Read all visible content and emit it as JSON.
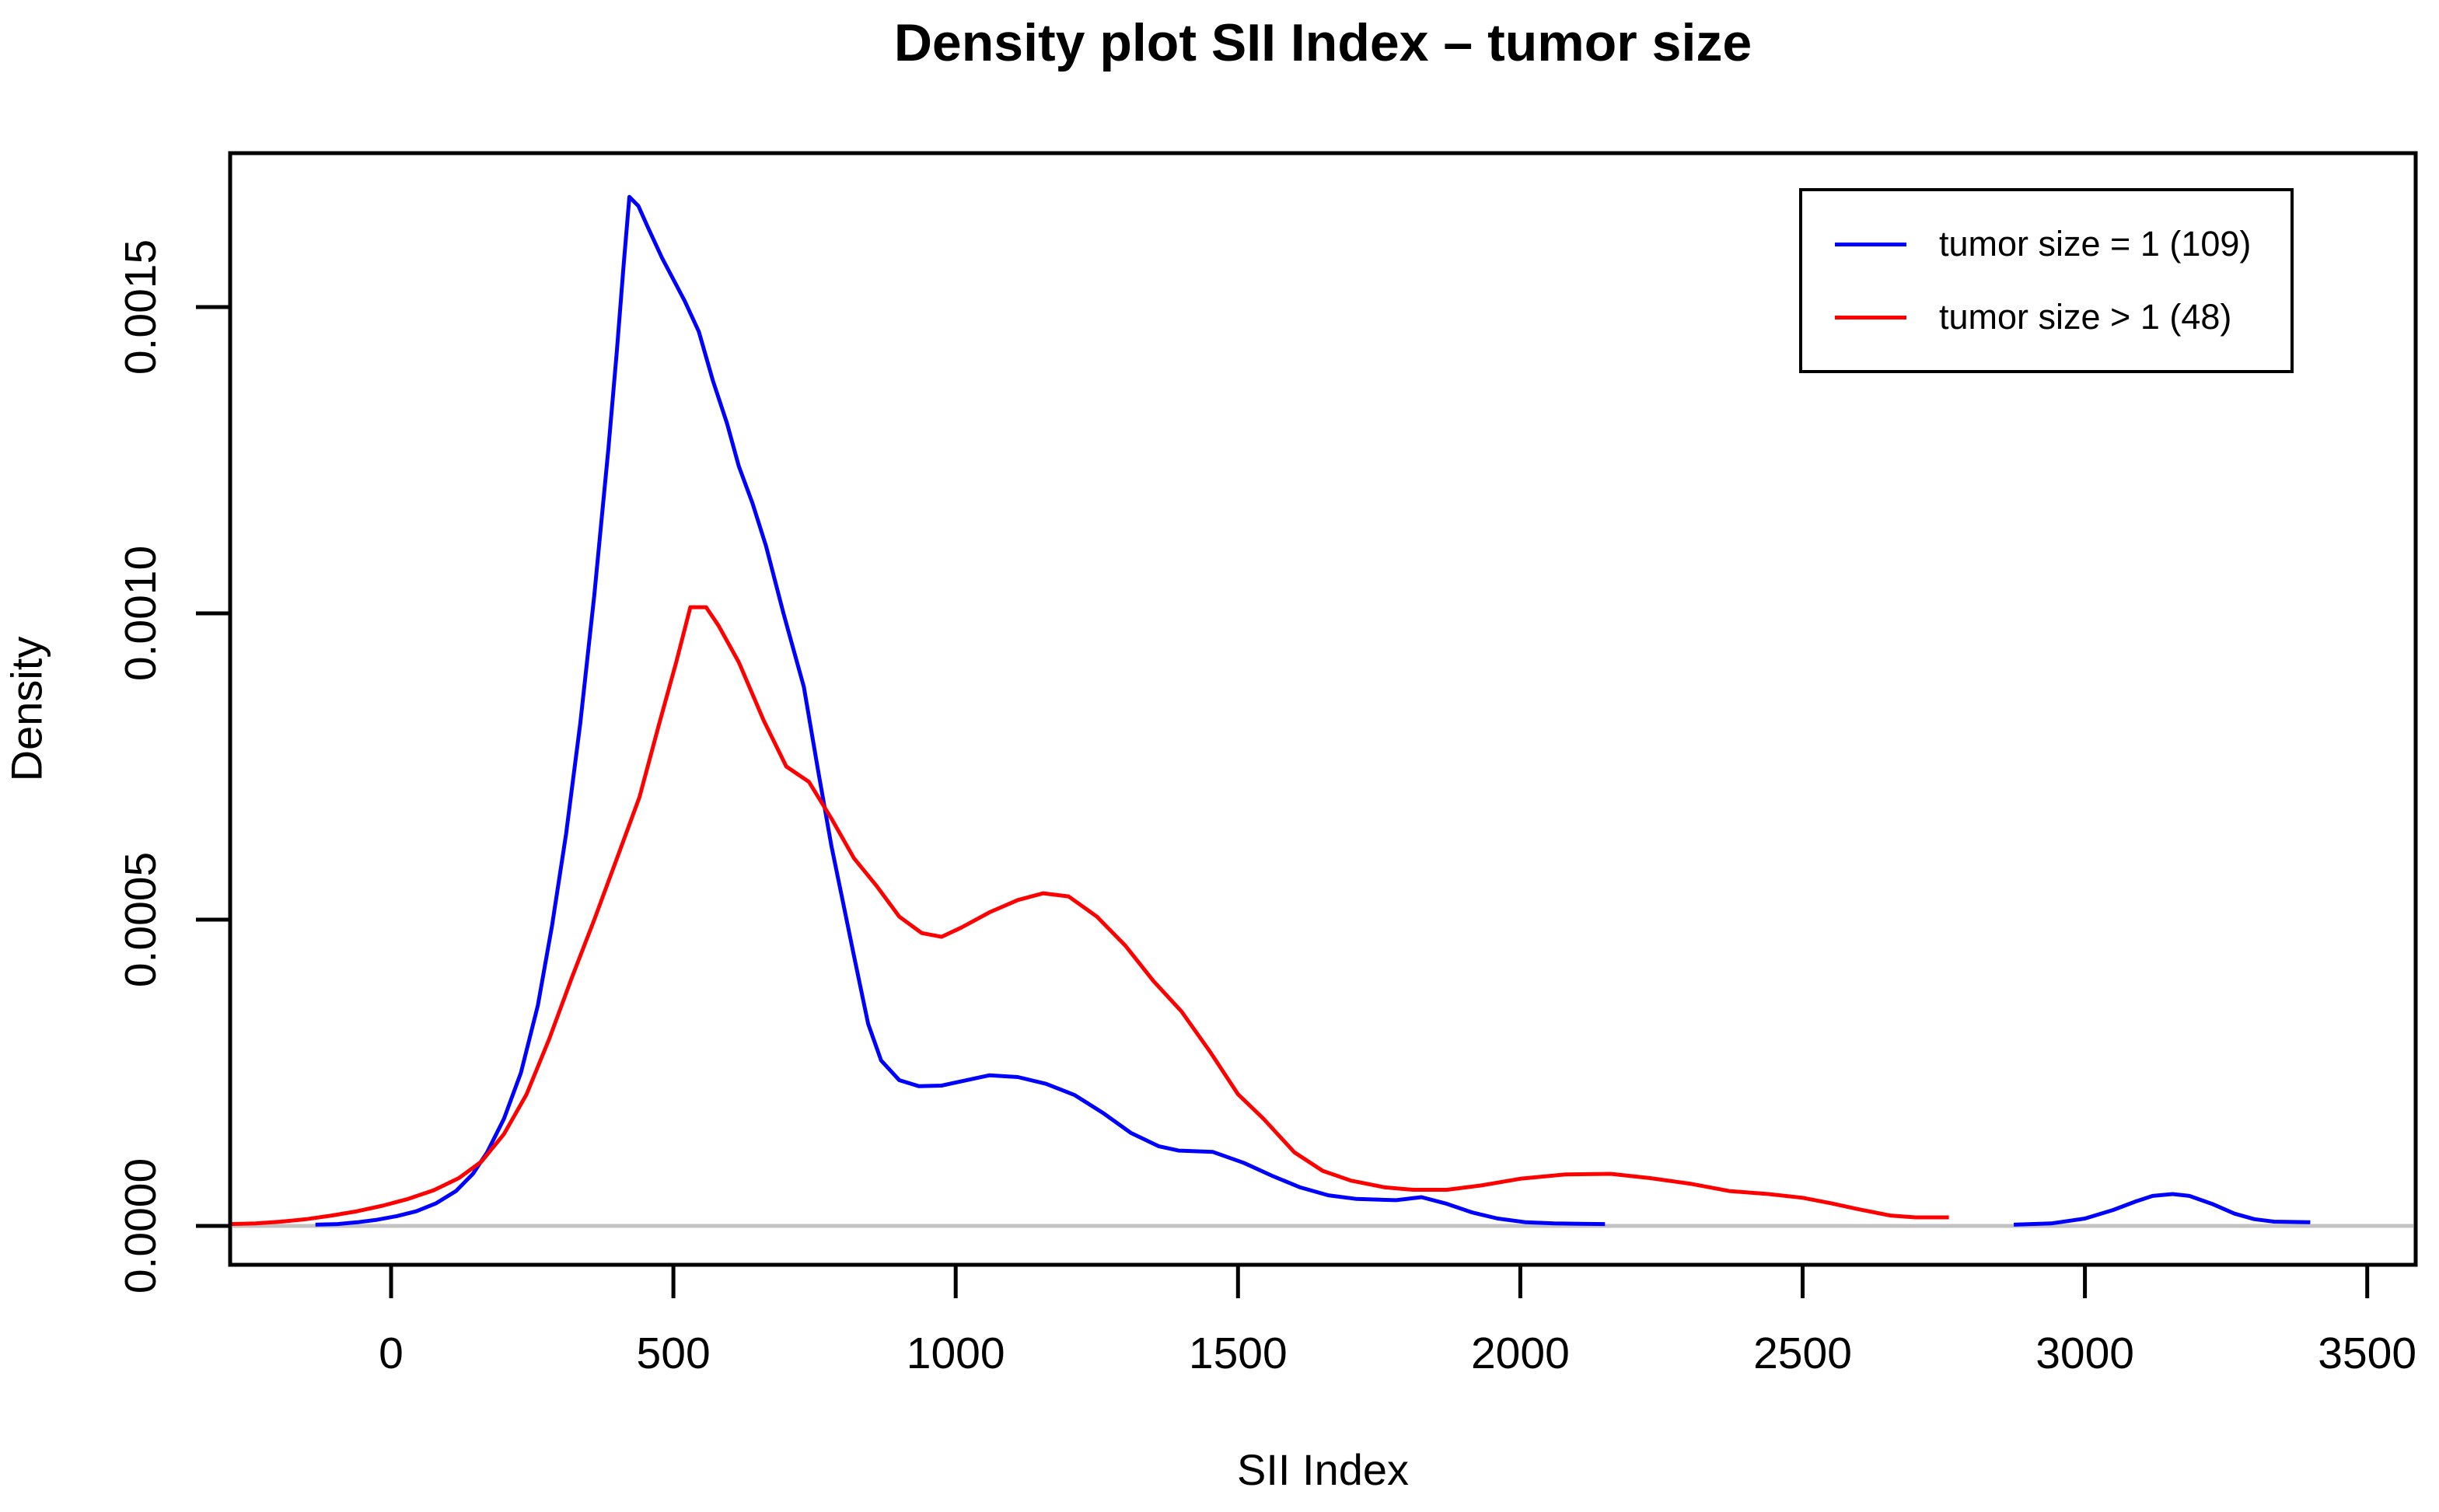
{
  "chart_data": {
    "type": "line",
    "title": "Density plot SII Index – tumor size",
    "xlabel": "SII Index",
    "ylabel": "Density",
    "x_ticks": [
      0,
      500,
      1000,
      1500,
      2000,
      2500,
      3000,
      3500
    ],
    "y_ticks": [
      "0.0000",
      "0.0005",
      "0.0010",
      "0.0015"
    ],
    "xlim": [
      -292,
      3588
    ],
    "ylim": [
      0,
      0.00175
    ],
    "grid": false,
    "baseline_y": 0,
    "baseline_color": "#c2c2c2",
    "legend_position": "top-right",
    "series": [
      {
        "name": "tumor size = 1 (109)",
        "color": "#0000ff",
        "segments": [
          [
            [
              -134,
              2e-06
            ],
            [
              -95,
              3e-06
            ],
            [
              -60,
              6e-06
            ],
            [
              -25,
              1e-05
            ],
            [
              10,
              1.6e-05
            ],
            [
              45,
              2.4e-05
            ],
            [
              80,
              3.7e-05
            ],
            [
              115,
              5.7e-05
            ],
            [
              145,
              8.5e-05
            ],
            [
              170,
              0.00012
            ],
            [
              200,
              0.000175
            ],
            [
              230,
              0.00025
            ],
            [
              260,
              0.00036
            ],
            [
              285,
              0.00049
            ],
            [
              310,
              0.00064
            ],
            [
              335,
              0.00082
            ],
            [
              360,
              0.00103
            ],
            [
              385,
              0.00127
            ],
            [
              400,
              0.00143
            ],
            [
              412,
              0.00157
            ],
            [
              422,
              0.00168
            ],
            [
              438,
              0.001665
            ],
            [
              455,
              0.00163
            ],
            [
              480,
              0.00158
            ],
            [
              500,
              0.001545
            ],
            [
              520,
              0.00151
            ],
            [
              545,
              0.00146
            ],
            [
              570,
              0.00138
            ],
            [
              595,
              0.00131
            ],
            [
              616,
              0.00124
            ],
            [
              640,
              0.00118
            ],
            [
              664,
              0.00111
            ],
            [
              695,
              0.001
            ],
            [
              731,
              0.00088
            ],
            [
              757,
              0.00074
            ],
            [
              780,
              0.00062
            ],
            [
              800,
              0.00053
            ],
            [
              820,
              0.00044
            ],
            [
              845,
              0.00033
            ],
            [
              868,
              0.00027
            ],
            [
              900,
              0.000238
            ],
            [
              935,
              0.000228
            ],
            [
              975,
              0.000229
            ],
            [
              1015,
              0.000237
            ],
            [
              1060,
              0.000246
            ],
            [
              1110,
              0.000243
            ],
            [
              1160,
              0.000232
            ],
            [
              1210,
              0.000214
            ],
            [
              1260,
              0.000185
            ],
            [
              1310,
              0.000152
            ],
            [
              1360,
              0.00013
            ],
            [
              1395,
              0.000123
            ],
            [
              1455,
              0.000121
            ],
            [
              1510,
              0.000103
            ],
            [
              1560,
              8.2e-05
            ],
            [
              1610,
              6.3e-05
            ],
            [
              1660,
              5e-05
            ],
            [
              1710,
              4.4e-05
            ],
            [
              1780,
              4.2e-05
            ],
            [
              1825,
              4.7e-05
            ],
            [
              1870,
              3.6e-05
            ],
            [
              1915,
              2.2e-05
            ],
            [
              1960,
              1.2e-05
            ],
            [
              2010,
              6e-06
            ],
            [
              2060,
              4e-06
            ],
            [
              2150,
              3e-06
            ]
          ],
          [
            [
              2874,
              2e-06
            ],
            [
              2940,
              4e-06
            ],
            [
              3000,
              1.2e-05
            ],
            [
              3050,
              2.6e-05
            ],
            [
              3090,
              4e-05
            ],
            [
              3120,
              4.9e-05
            ],
            [
              3155,
              5.2e-05
            ],
            [
              3185,
              4.9e-05
            ],
            [
              3225,
              3.6e-05
            ],
            [
              3265,
              2e-05
            ],
            [
              3300,
              1.1e-05
            ],
            [
              3335,
              7e-06
            ],
            [
              3399,
              6e-06
            ]
          ]
        ]
      },
      {
        "name": "tumor size > 1 (48)",
        "color": "#ff0000",
        "segments": [
          [
            [
              -285,
              3e-06
            ],
            [
              -240,
              4e-06
            ],
            [
              -195,
              7e-06
            ],
            [
              -150,
              1.1e-05
            ],
            [
              -105,
              1.7e-05
            ],
            [
              -60,
              2.4e-05
            ],
            [
              -15,
              3.3e-05
            ],
            [
              30,
              4.4e-05
            ],
            [
              75,
              5.8e-05
            ],
            [
              120,
              7.8e-05
            ],
            [
              160,
              0.000105
            ],
            [
              200,
              0.00015
            ],
            [
              240,
              0.000215
            ],
            [
              280,
              0.000305
            ],
            [
              320,
              0.000405
            ],
            [
              360,
              0.0005
            ],
            [
              400,
              0.0006
            ],
            [
              440,
              0.0007
            ],
            [
              475,
              0.00082
            ],
            [
              505,
              0.00092
            ],
            [
              530,
              0.00101
            ],
            [
              558,
              0.00101
            ],
            [
              580,
              0.00098
            ],
            [
              616,
              0.00092
            ],
            [
              660,
              0.000825
            ],
            [
              700,
              0.00075
            ],
            [
              740,
              0.000725
            ],
            [
              780,
              0.000665
            ],
            [
              820,
              0.0006
            ],
            [
              860,
              0.000555
            ],
            [
              900,
              0.000505
            ],
            [
              940,
              0.000478
            ],
            [
              975,
              0.000472
            ],
            [
              1010,
              0.000487
            ],
            [
              1060,
              0.000512
            ],
            [
              1110,
              0.000532
            ],
            [
              1155,
              0.000543
            ],
            [
              1200,
              0.000538
            ],
            [
              1250,
              0.000505
            ],
            [
              1300,
              0.000458
            ],
            [
              1350,
              0.0004
            ],
            [
              1400,
              0.00035
            ],
            [
              1450,
              0.000285
            ],
            [
              1500,
              0.000215
            ],
            [
              1545,
              0.000175
            ],
            [
              1600,
              0.00012
            ],
            [
              1650,
              9e-05
            ],
            [
              1700,
              7.4e-05
            ],
            [
              1760,
              6.3e-05
            ],
            [
              1810,
              5.9e-05
            ],
            [
              1870,
              5.9e-05
            ],
            [
              1930,
              6.6e-05
            ],
            [
              2000,
              7.7e-05
            ],
            [
              2080,
              8.4e-05
            ],
            [
              2160,
              8.5e-05
            ],
            [
              2230,
              7.8e-05
            ],
            [
              2300,
              6.9e-05
            ],
            [
              2370,
              5.7e-05
            ],
            [
              2440,
              5.2e-05
            ],
            [
              2500,
              4.6e-05
            ],
            [
              2550,
              3.7e-05
            ],
            [
              2600,
              2.7e-05
            ],
            [
              2655,
              1.7e-05
            ],
            [
              2700,
              1.4e-05
            ],
            [
              2759,
              1.4e-05
            ]
          ]
        ]
      }
    ]
  },
  "legend": {
    "items": [
      {
        "label": "tumor size = 1 (109)",
        "color": "#0000ff"
      },
      {
        "label": "tumor size > 1 (48)",
        "color": "#ff0000"
      }
    ]
  }
}
